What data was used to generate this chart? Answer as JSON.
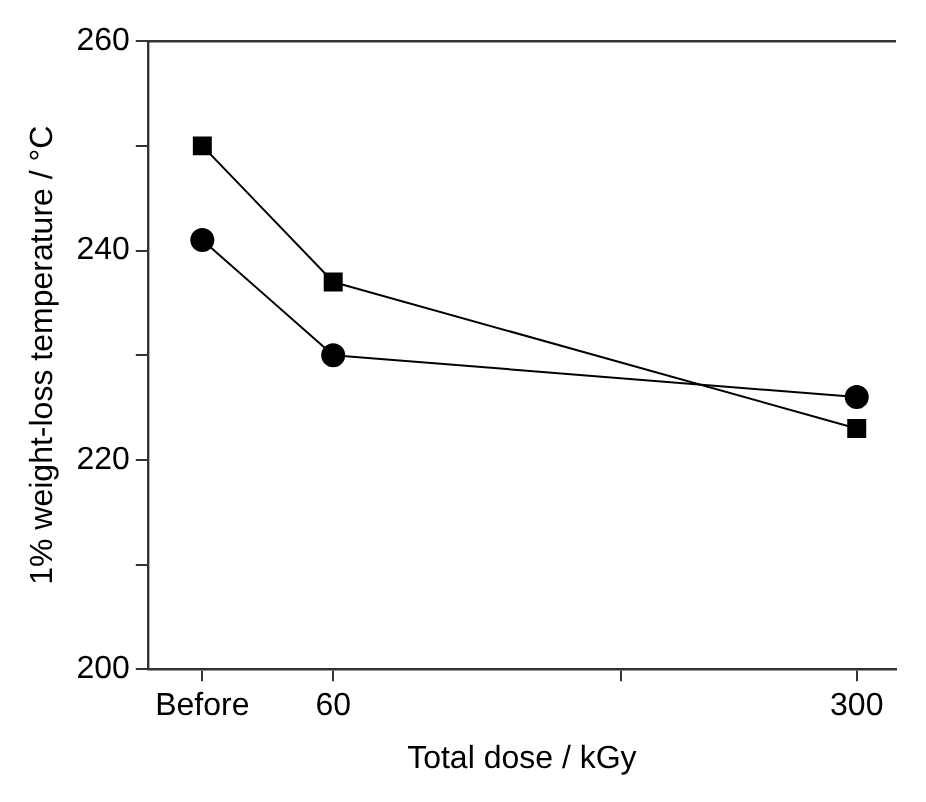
{
  "chart_data": {
    "type": "line",
    "xlabel": "Total dose / kGy",
    "ylabel": "1% weight-loss temperature / °C",
    "x": [
      0,
      60,
      300
    ],
    "series": [
      {
        "color": "#000000",
        "marker": "square",
        "values": [
          250,
          237,
          223
        ]
      },
      {
        "color": "#000000",
        "marker": "circle",
        "values": [
          241,
          230,
          226
        ]
      }
    ],
    "xlim": [
      -25,
      318
    ],
    "xticks": [
      {
        "value": 0,
        "label": "Before"
      },
      60,
      {
        "value": 192,
        "label": null
      },
      300
    ],
    "ylim": [
      200,
      260
    ],
    "yticks": [
      200,
      {
        "value": 210,
        "label": null
      },
      220,
      {
        "value": 230,
        "label": null
      },
      240,
      {
        "value": 250,
        "label": null
      },
      260
    ],
    "grid": false,
    "legend": false,
    "line_style": "solid"
  }
}
